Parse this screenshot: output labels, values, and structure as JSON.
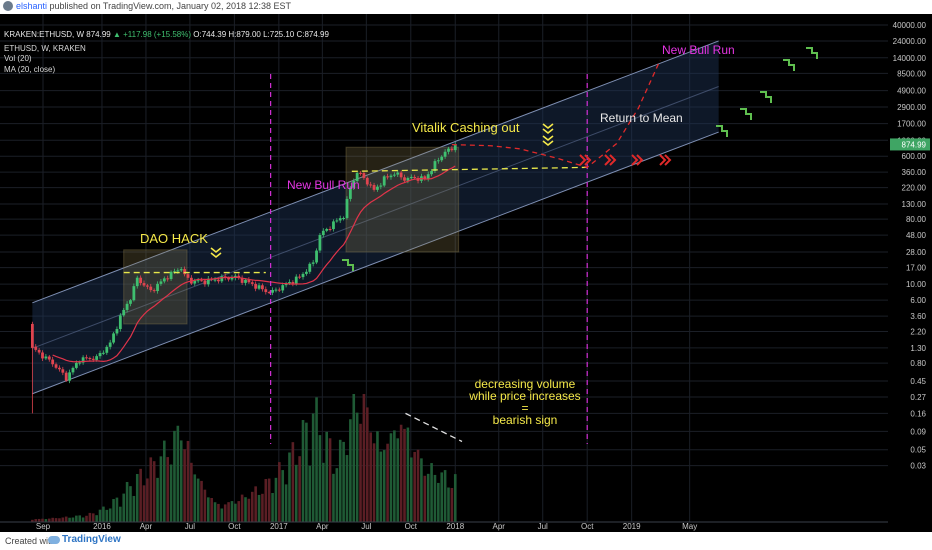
{
  "publish": {
    "author": "elshanti",
    "text": " published on TradingView.com, January 02, 2018 12:38 EST"
  },
  "legend": {
    "symbol": "KRAKEN:ETHUSD, W",
    "price": "874.99",
    "change": "+117.98 (+15.58%)",
    "open": "O:744.39",
    "high": "H:879.00",
    "low": "L:725.10",
    "close": "C:874.99",
    "title": "ETHUSD, W, KRAKEN",
    "vol": "Vol (20)",
    "ma": "MA (20, close)"
  },
  "footer": {
    "created_with": "Created with",
    "brand": "TradingView"
  },
  "chart_data": {
    "type": "candlestick",
    "symbol": "ETHUSD",
    "interval": "W",
    "exchange": "KRAKEN",
    "y_scale": "log",
    "ylim": [
      0.01,
      40000
    ],
    "y_ticks": [
      "40000.00",
      "24000.00",
      "14000.00",
      "8500.00",
      "4900.00",
      "2900.00",
      "1700.00",
      "1000.00",
      "600.00",
      "360.00",
      "220.00",
      "130.00",
      "80.00",
      "48.00",
      "28.00",
      "17.00",
      "10.00",
      "6.00",
      "3.60",
      "2.20",
      "1.30",
      "0.80",
      "0.45",
      "0.27",
      "0.16",
      "0.09",
      "0.05",
      "0.03"
    ],
    "x_labels": [
      {
        "label": "Sep",
        "date": "2015-09-01"
      },
      {
        "label": "2016",
        "date": "2016-01-01"
      },
      {
        "label": "Apr",
        "date": "2016-04-01"
      },
      {
        "label": "Jul",
        "date": "2016-07-01"
      },
      {
        "label": "Oct",
        "date": "2016-10-01"
      },
      {
        "label": "2017",
        "date": "2017-01-01"
      },
      {
        "label": "Apr",
        "date": "2017-04-01"
      },
      {
        "label": "Jul",
        "date": "2017-07-01"
      },
      {
        "label": "Oct",
        "date": "2017-10-01"
      },
      {
        "label": "2018",
        "date": "2018-01-01"
      },
      {
        "label": "Apr",
        "date": "2018-04-01"
      },
      {
        "label": "Jul",
        "date": "2018-07-01"
      },
      {
        "label": "Oct",
        "date": "2018-10-01"
      },
      {
        "label": "2019",
        "date": "2019-01-01"
      },
      {
        "label": "May",
        "date": "2019-05-01"
      }
    ],
    "last_price_label": "874.99",
    "price_anchors": [
      [
        "2015-08-10",
        1.3
      ],
      [
        "2015-08-24",
        1.1
      ],
      [
        "2015-09-21",
        0.8
      ],
      [
        "2015-10-19",
        0.5
      ],
      [
        "2015-11-16",
        0.9
      ],
      [
        "2015-12-21",
        0.95
      ],
      [
        "2016-01-18",
        1.5
      ],
      [
        "2016-02-08",
        3.5
      ],
      [
        "2016-02-29",
        6.5
      ],
      [
        "2016-03-14",
        12
      ],
      [
        "2016-04-11",
        8
      ],
      [
        "2016-05-16",
        13
      ],
      [
        "2016-06-13",
        17
      ],
      [
        "2016-06-20",
        13
      ],
      [
        "2016-07-04",
        11
      ],
      [
        "2016-08-01",
        11
      ],
      [
        "2016-09-05",
        12
      ],
      [
        "2016-10-03",
        12.5
      ],
      [
        "2016-11-07",
        10
      ],
      [
        "2016-12-05",
        8
      ],
      [
        "2016-12-19",
        7.8
      ],
      [
        "2017-01-16",
        10
      ],
      [
        "2017-02-13",
        12.5
      ],
      [
        "2017-03-13",
        20
      ],
      [
        "2017-03-27",
        48
      ],
      [
        "2017-04-24",
        70
      ],
      [
        "2017-05-15",
        90
      ],
      [
        "2017-05-29",
        220
      ],
      [
        "2017-06-12",
        360
      ],
      [
        "2017-06-26",
        300
      ],
      [
        "2017-07-17",
        200
      ],
      [
        "2017-08-07",
        290
      ],
      [
        "2017-08-28",
        350
      ],
      [
        "2017-09-18",
        290
      ],
      [
        "2017-10-09",
        300
      ],
      [
        "2017-10-30",
        290
      ],
      [
        "2017-11-20",
        470
      ],
      [
        "2017-12-11",
        700
      ],
      [
        "2017-12-25",
        740
      ],
      [
        "2018-01-01",
        874.99
      ]
    ],
    "ma_period": 20,
    "volume_anchors": [
      [
        "2015-08-10",
        0.02
      ],
      [
        "2015-12-01",
        0.05
      ],
      [
        "2016-03-01",
        0.28
      ],
      [
        "2016-06-15",
        0.7
      ],
      [
        "2016-09-01",
        0.12
      ],
      [
        "2016-12-15",
        0.3
      ],
      [
        "2017-03-15",
        0.8
      ],
      [
        "2017-05-01",
        0.45
      ],
      [
        "2017-06-15",
        1.0
      ],
      [
        "2017-08-01",
        0.55
      ],
      [
        "2017-09-15",
        0.75
      ],
      [
        "2017-11-01",
        0.4
      ],
      [
        "2018-01-01",
        0.3
      ]
    ],
    "regression_channel": {
      "lower": [
        [
          "2015-08-10",
          0.3
        ],
        [
          "2019-06-30",
          1300
        ]
      ],
      "upper": [
        [
          "2015-08-10",
          5.5
        ],
        [
          "2019-06-30",
          24000
        ]
      ]
    },
    "projection_red": [
      [
        "2017-12-25",
        870
      ],
      [
        "2018-03-15",
        840
      ],
      [
        "2018-05-15",
        760
      ],
      [
        "2018-08-01",
        560
      ],
      [
        "2018-10-01",
        420
      ],
      [
        "2018-12-01",
        900
      ],
      [
        "2019-01-15",
        2800
      ],
      [
        "2019-03-01",
        13000
      ]
    ],
    "support_lines": [
      {
        "from": [
          "2016-02-15",
          14.5
        ],
        "to": [
          "2016-12-05",
          14.5
        ]
      },
      {
        "from": [
          "2017-06-01",
          370
        ],
        "to": [
          "2018-10-01",
          420
        ]
      }
    ],
    "boxes": [
      {
        "from": "2016-02-15",
        "to": "2016-06-25",
        "low": 2.8,
        "high": 30
      },
      {
        "from": "2017-05-20",
        "to": "2018-01-08",
        "low": 28,
        "high": 800
      }
    ],
    "vertical_lines": [
      "2016-12-15",
      "2018-10-01"
    ],
    "volume_trend": {
      "from": [
        "2017-09-20",
        0.16
      ],
      "to": [
        "2018-01-15",
        0.065
      ]
    },
    "annotations": {
      "dao_hack": "DAO HACK",
      "vitalik": "Vitalik Cashing out",
      "bull_run_1": "New Bull Run",
      "bull_run_2": "New Bull Run",
      "return_mean": "Return to Mean",
      "volume_note": [
        "decreasing volume",
        "while price increases",
        "=",
        "bearish sign"
      ]
    },
    "grid": true,
    "legend_position": "top-left"
  }
}
